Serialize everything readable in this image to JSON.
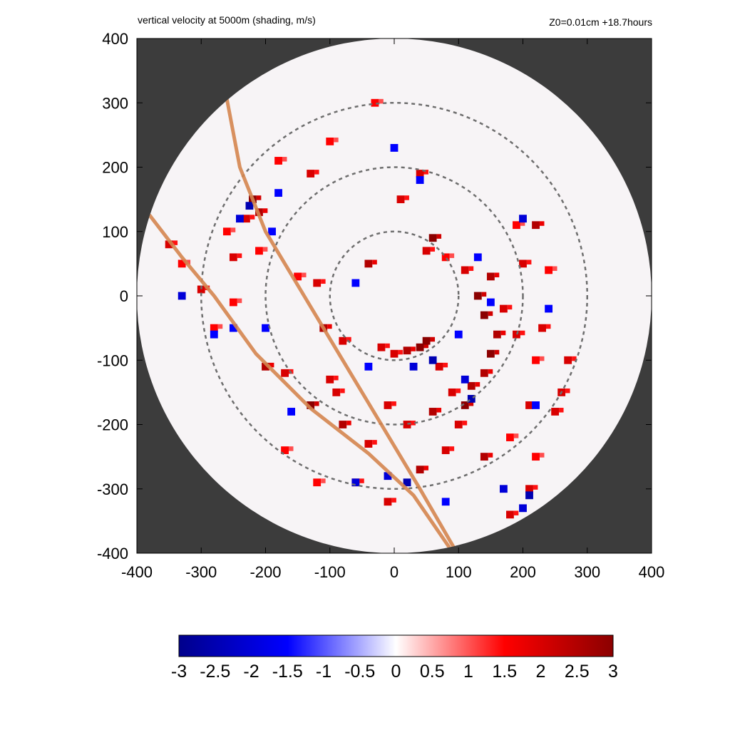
{
  "title": "vertical velocity at 5000m (shading, m/s)",
  "subtitle": "Z0=0.01cm  +18.7hours",
  "colors": {
    "background_outside": "#3c3c3c",
    "disk_fill": "#f7f4f6",
    "track": "#d4854f",
    "ring": "#6e6e6e",
    "cmap_min": "#00008b",
    "cmap_mid_neg": "#0000ff",
    "cmap_zero": "#ffffff",
    "cmap_mid_pos": "#ff0000",
    "cmap_max": "#8b0000"
  },
  "chart_data": {
    "type": "heatmap",
    "title": "vertical velocity at 5000m (shading, m/s)",
    "subtitle": "Z0=0.01cm  +18.7hours",
    "xlim": [
      -400,
      400
    ],
    "ylim": [
      -400,
      400
    ],
    "x_ticks": [
      "-400",
      "-300",
      "-200",
      "-100",
      "0",
      "100",
      "200",
      "300",
      "400"
    ],
    "y_ticks": [
      "400",
      "300",
      "200",
      "100",
      "0",
      "-100",
      "-200",
      "-300",
      "-400"
    ],
    "x_tick_values": [
      -400,
      -300,
      -200,
      -100,
      0,
      100,
      200,
      300,
      400
    ],
    "y_tick_values": [
      400,
      300,
      200,
      100,
      0,
      -100,
      -200,
      -300,
      -400
    ],
    "domain_radius": 400,
    "range_rings": [
      100,
      200,
      300
    ],
    "colorbar": {
      "range": [
        -3,
        3
      ],
      "tick_values": [
        -3,
        -2.5,
        -2,
        -1.5,
        -1,
        -0.5,
        0,
        0.5,
        1,
        1.5,
        2,
        2.5,
        3
      ],
      "tick_labels": [
        "-3",
        "-2.5",
        "-2",
        "-1.5",
        "-1",
        "-0.5",
        "0",
        "0.5",
        "1",
        "1.5",
        "2",
        "2.5",
        "3"
      ]
    },
    "tracks": [
      {
        "points": [
          [
            -260,
            305
          ],
          [
            -240,
            200
          ],
          [
            -200,
            100
          ],
          [
            -140,
            0
          ],
          [
            -80,
            -100
          ],
          [
            -20,
            -200
          ],
          [
            40,
            -300
          ],
          [
            95,
            -395
          ]
        ]
      },
      {
        "points": [
          [
            -380,
            125
          ],
          [
            -330,
            60
          ],
          [
            -280,
            0
          ],
          [
            -215,
            -90
          ],
          [
            -130,
            -175
          ],
          [
            -40,
            -245
          ],
          [
            30,
            -310
          ],
          [
            85,
            -390
          ]
        ]
      }
    ],
    "updraft_cells": [
      [
        -220,
        150,
        3
      ],
      [
        -210,
        130,
        2.5
      ],
      [
        -230,
        120,
        2
      ],
      [
        -260,
        100,
        1.5
      ],
      [
        -250,
        60,
        2
      ],
      [
        -210,
        70,
        1.5
      ],
      [
        -350,
        80,
        2
      ],
      [
        -330,
        50,
        1.5
      ],
      [
        -300,
        10,
        2
      ],
      [
        -280,
        -50,
        1.5
      ],
      [
        -250,
        -10,
        1.5
      ],
      [
        -200,
        -110,
        2.5
      ],
      [
        -170,
        -120,
        2
      ],
      [
        -130,
        -170,
        3
      ],
      [
        -100,
        -130,
        2
      ],
      [
        -80,
        -200,
        2.5
      ],
      [
        -40,
        -230,
        2
      ],
      [
        -10,
        -170,
        2
      ],
      [
        20,
        -200,
        2
      ],
      [
        60,
        -180,
        2.5
      ],
      [
        90,
        -150,
        2
      ],
      [
        110,
        -170,
        3
      ],
      [
        120,
        -140,
        2.5
      ],
      [
        140,
        -120,
        2.5
      ],
      [
        150,
        -90,
        3
      ],
      [
        160,
        -60,
        2.5
      ],
      [
        140,
        -30,
        3
      ],
      [
        130,
        0,
        3
      ],
      [
        150,
        30,
        2.5
      ],
      [
        170,
        -20,
        2
      ],
      [
        190,
        -60,
        2
      ],
      [
        230,
        -50,
        2
      ],
      [
        220,
        -100,
        1.5
      ],
      [
        270,
        -100,
        2
      ],
      [
        260,
        -150,
        2
      ],
      [
        210,
        -170,
        2
      ],
      [
        200,
        50,
        2
      ],
      [
        220,
        110,
        2.5
      ],
      [
        190,
        110,
        1.5
      ],
      [
        240,
        40,
        1.5
      ],
      [
        40,
        -80,
        3
      ],
      [
        50,
        -70,
        3
      ],
      [
        20,
        -85,
        2.5
      ],
      [
        0,
        -90,
        2
      ],
      [
        -20,
        -80,
        2
      ],
      [
        60,
        90,
        3
      ],
      [
        50,
        70,
        2
      ],
      [
        -40,
        50,
        2.5
      ],
      [
        -120,
        20,
        2
      ],
      [
        -110,
        -50,
        2.5
      ],
      [
        -80,
        -70,
        2
      ],
      [
        -10,
        -320,
        2
      ],
      [
        40,
        -270,
        2.5
      ],
      [
        80,
        -240,
        2
      ],
      [
        100,
        -200,
        2
      ],
      [
        140,
        -250,
        2.5
      ],
      [
        180,
        -220,
        1.5
      ],
      [
        220,
        -250,
        1.5
      ],
      [
        210,
        -300,
        2
      ],
      [
        180,
        -340,
        2
      ],
      [
        -60,
        -290,
        2
      ],
      [
        -120,
        -290,
        1.5
      ],
      [
        -30,
        300,
        1.5
      ],
      [
        40,
        190,
        2
      ],
      [
        10,
        150,
        2
      ],
      [
        -100,
        240,
        1.5
      ],
      [
        -180,
        210,
        1.5
      ],
      [
        -130,
        190,
        2
      ],
      [
        -150,
        30,
        1.5
      ],
      [
        110,
        40,
        2
      ],
      [
        80,
        60,
        1.5
      ],
      [
        250,
        -180,
        2
      ],
      [
        -170,
        -240,
        1.5
      ],
      [
        -90,
        -150,
        2
      ],
      [
        70,
        -110,
        2
      ]
    ],
    "downdraft_cells": [
      [
        -225,
        140,
        -2.5
      ],
      [
        -240,
        120,
        -2
      ],
      [
        -190,
        100,
        -1.5
      ],
      [
        -330,
        0,
        -2
      ],
      [
        -250,
        -50,
        -1.5
      ],
      [
        -200,
        -50,
        -1.5
      ],
      [
        60,
        -100,
        -2.5
      ],
      [
        30,
        -110,
        -2
      ],
      [
        -40,
        -110,
        -1.5
      ],
      [
        120,
        -160,
        -2.5
      ],
      [
        110,
        -130,
        -2
      ],
      [
        150,
        -10,
        -1.5
      ],
      [
        200,
        120,
        -2
      ],
      [
        240,
        -20,
        -1.5
      ],
      [
        220,
        -170,
        -1.5
      ],
      [
        -10,
        -280,
        -2
      ],
      [
        20,
        -290,
        -2.5
      ],
      [
        210,
        -310,
        -2.5
      ],
      [
        200,
        -330,
        -2
      ],
      [
        -60,
        -290,
        -2
      ],
      [
        -160,
        -180,
        -1.5
      ],
      [
        -180,
        160,
        -1.5
      ],
      [
        40,
        180,
        -1.5
      ],
      [
        -60,
        20,
        -1.5
      ],
      [
        100,
        -60,
        -1.5
      ],
      [
        170,
        -300,
        -2
      ],
      [
        -280,
        -60,
        -1.5
      ],
      [
        80,
        -320,
        -1.5
      ],
      [
        130,
        60,
        -1.5
      ],
      [
        0,
        230,
        -1.5
      ]
    ]
  }
}
